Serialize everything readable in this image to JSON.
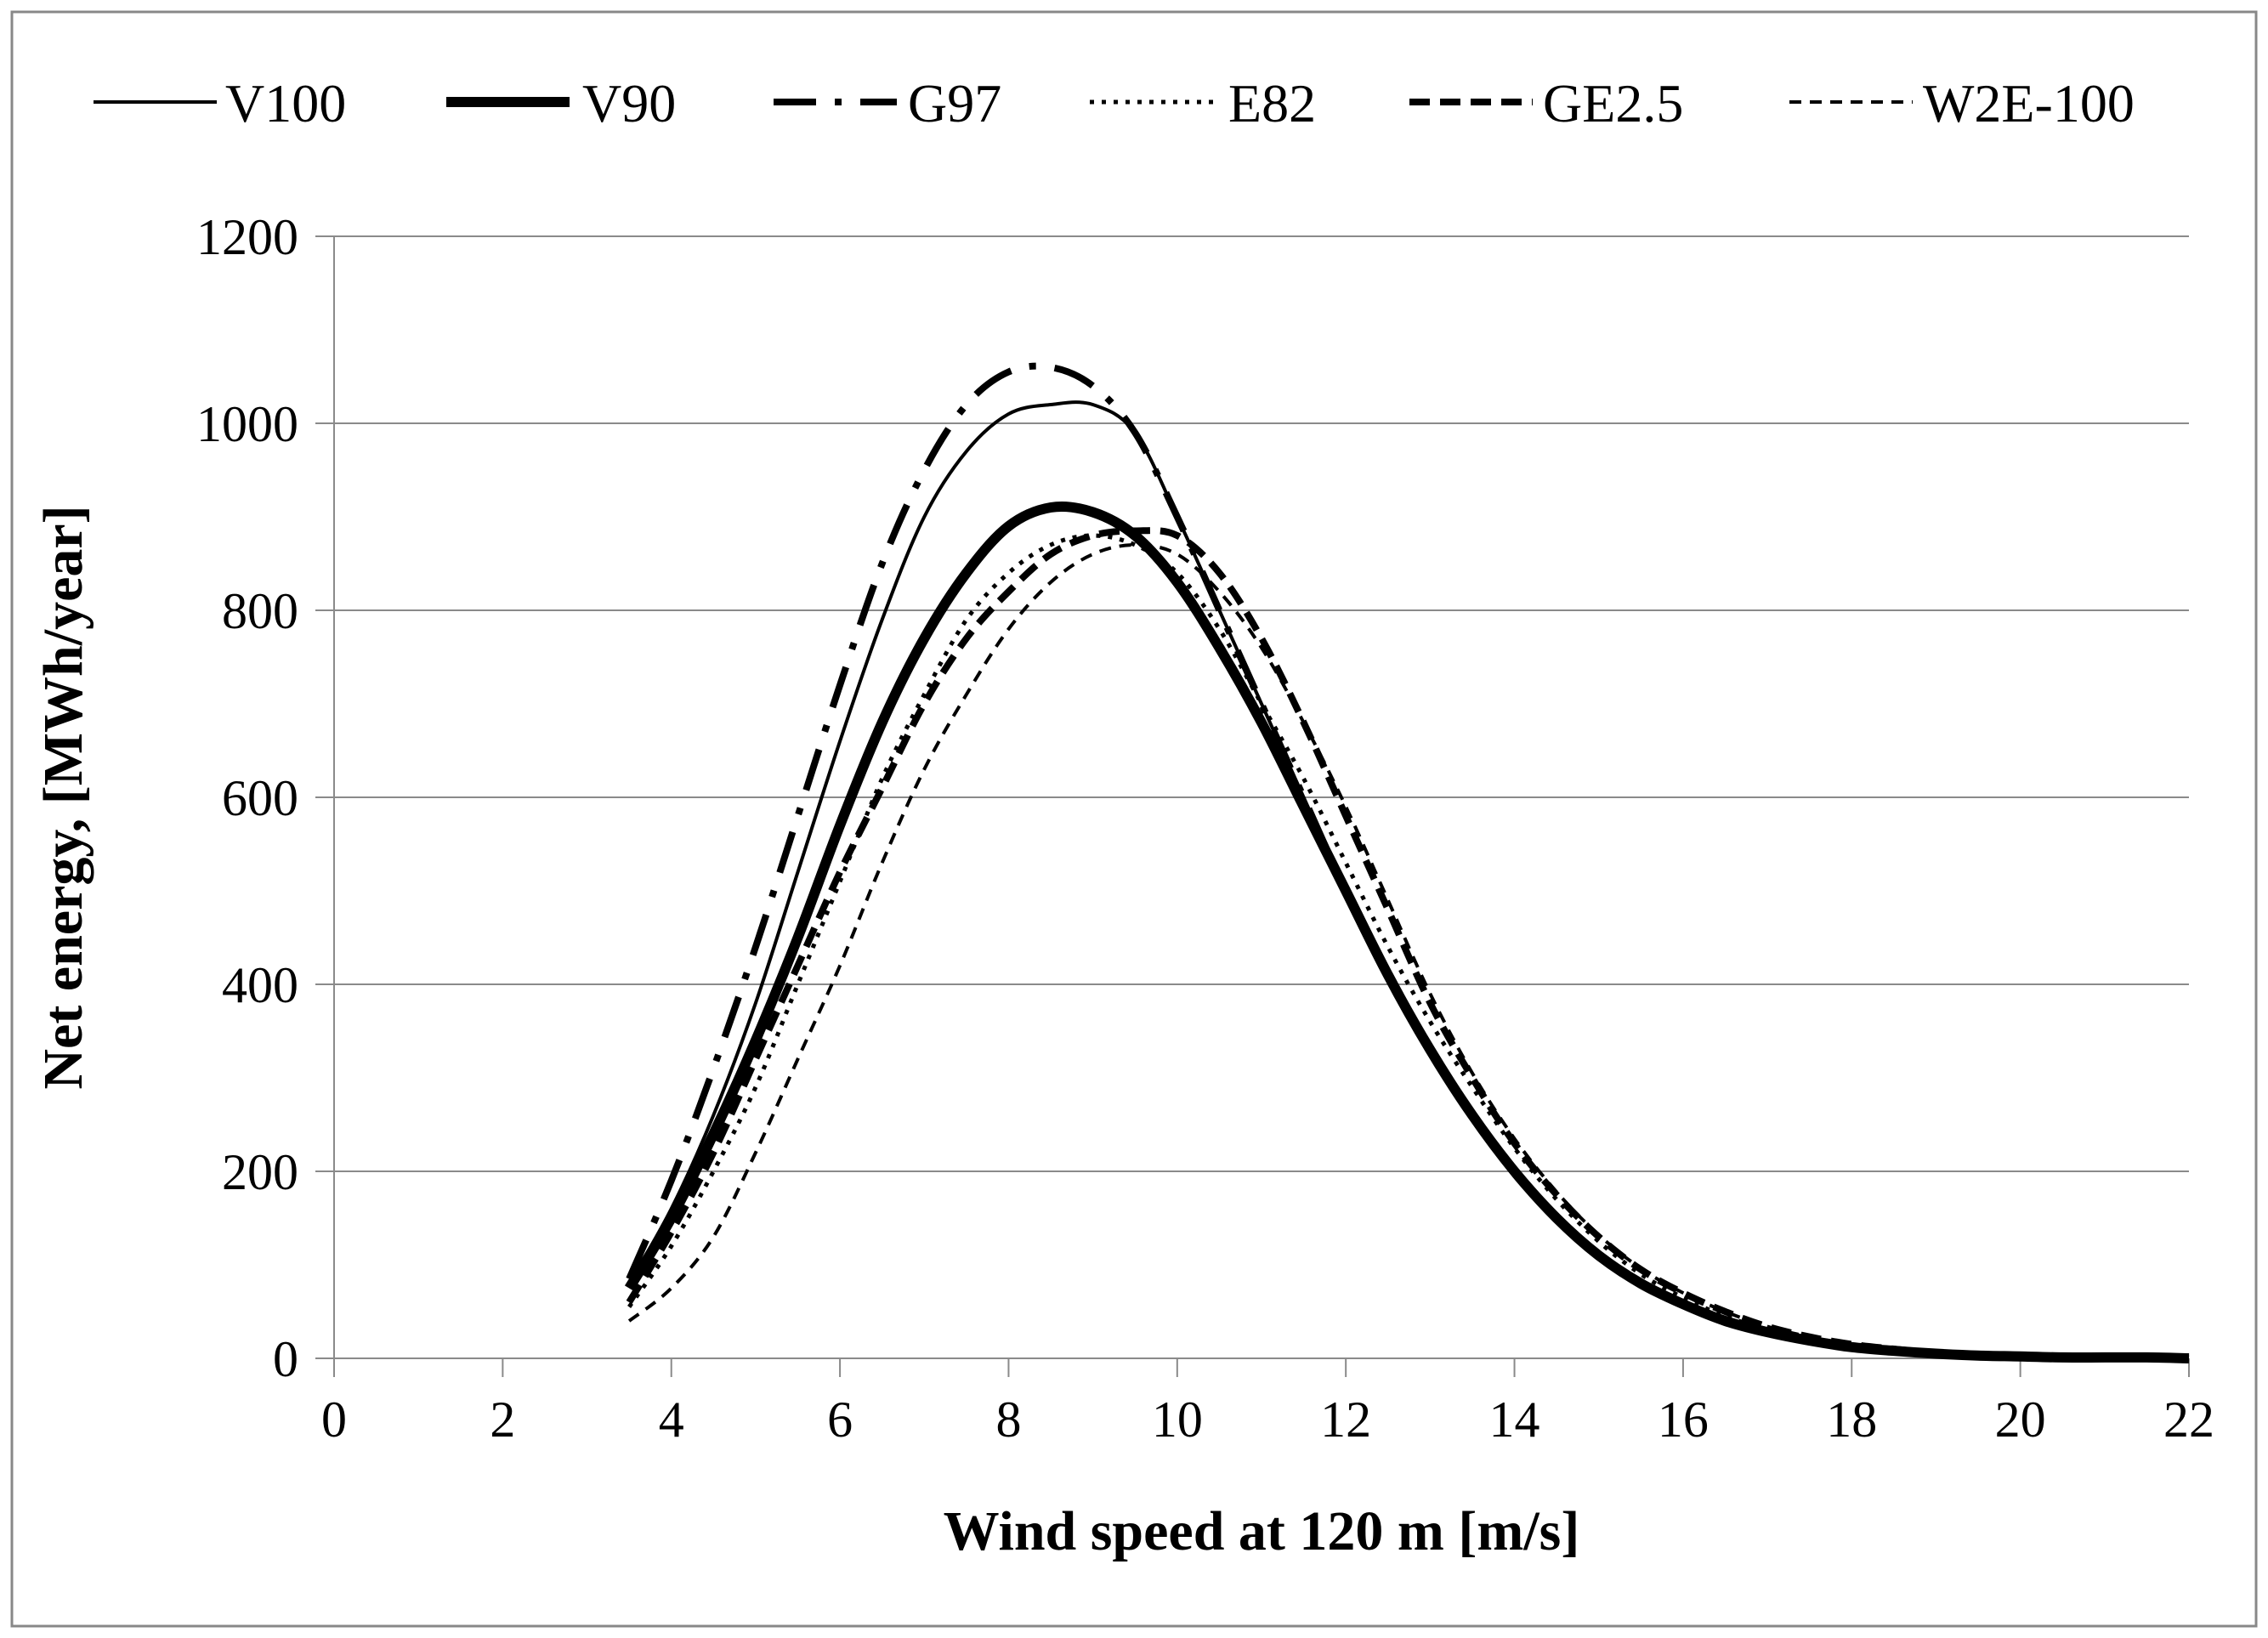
{
  "chart_data": {
    "type": "line",
    "title": "",
    "xlabel": "Wind speed at 120 m [m/s]",
    "ylabel": "Net energy, [MWh/year]",
    "xlim": [
      0,
      22
    ],
    "ylim": [
      0,
      1200
    ],
    "xticks": [
      0,
      2,
      4,
      6,
      8,
      10,
      12,
      14,
      16,
      18,
      20,
      22
    ],
    "yticks": [
      0,
      200,
      400,
      600,
      800,
      1000,
      1200
    ],
    "grid": "horizontal",
    "legend_position": "top",
    "x": [
      3.5,
      4,
      4.5,
      5,
      5.5,
      6,
      6.5,
      7,
      7.5,
      8,
      8.5,
      9,
      9.5,
      10,
      10.5,
      11,
      11.5,
      12,
      12.5,
      13,
      13.5,
      14,
      14.5,
      15,
      15.5,
      16,
      16.5,
      17,
      17.5,
      18,
      18.5,
      19,
      19.5,
      20,
      20.5,
      21,
      21.5,
      22
    ],
    "series": [
      {
        "name": "V100",
        "style": "solid-thin",
        "color": "#000000",
        "values": [
          80,
          160,
          260,
          380,
          520,
          660,
          790,
          900,
          970,
          1010,
          1020,
          1020,
          990,
          900,
          800,
          700,
          600,
          500,
          410,
          330,
          260,
          200,
          150,
          110,
          80,
          60,
          42,
          30,
          20,
          13,
          9,
          6,
          4,
          3,
          2,
          1,
          1,
          1
        ]
      },
      {
        "name": "V90",
        "style": "solid-thick",
        "color": "#000000",
        "values": [
          75,
          150,
          240,
          340,
          450,
          570,
          680,
          770,
          840,
          890,
          910,
          905,
          880,
          830,
          760,
          680,
          590,
          500,
          410,
          330,
          260,
          200,
          150,
          110,
          80,
          58,
          40,
          28,
          19,
          12,
          8,
          5,
          3,
          2,
          1,
          1,
          1,
          0
        ]
      },
      {
        "name": "G97",
        "style": "dash-dot",
        "color": "#000000",
        "values": [
          85,
          190,
          310,
          440,
          580,
          720,
          850,
          950,
          1020,
          1055,
          1060,
          1040,
          990,
          900,
          800,
          700,
          600,
          500,
          410,
          330,
          260,
          200,
          150,
          110,
          80,
          58,
          40,
          28,
          19,
          12,
          8,
          5,
          3,
          2,
          1,
          1,
          1,
          0
        ]
      },
      {
        "name": "E82",
        "style": "dotted",
        "color": "#000000",
        "values": [
          55,
          120,
          200,
          290,
          400,
          510,
          620,
          710,
          790,
          840,
          870,
          880,
          870,
          840,
          780,
          700,
          620,
          530,
          440,
          360,
          290,
          225,
          170,
          125,
          90,
          65,
          45,
          31,
          21,
          14,
          9,
          6,
          4,
          2,
          1,
          1,
          1,
          0
        ]
      },
      {
        "name": "GE2.5",
        "style": "dashed-thick",
        "color": "#000000",
        "values": [
          60,
          135,
          220,
          320,
          420,
          520,
          610,
          700,
          770,
          820,
          860,
          880,
          885,
          880,
          840,
          770,
          680,
          580,
          480,
          380,
          300,
          230,
          175,
          130,
          95,
          70,
          50,
          34,
          23,
          15,
          10,
          6,
          4,
          2,
          1,
          1,
          1,
          0
        ]
      },
      {
        "name": "W2E-100",
        "style": "dashed-thin",
        "color": "#000000",
        "values": [
          40,
          75,
          130,
          220,
          320,
          420,
          530,
          630,
          710,
          780,
          830,
          860,
          870,
          860,
          820,
          760,
          680,
          590,
          490,
          390,
          305,
          235,
          178,
          132,
          96,
          70,
          50,
          34,
          23,
          15,
          10,
          6,
          4,
          2,
          1,
          1,
          1,
          0
        ]
      }
    ]
  }
}
